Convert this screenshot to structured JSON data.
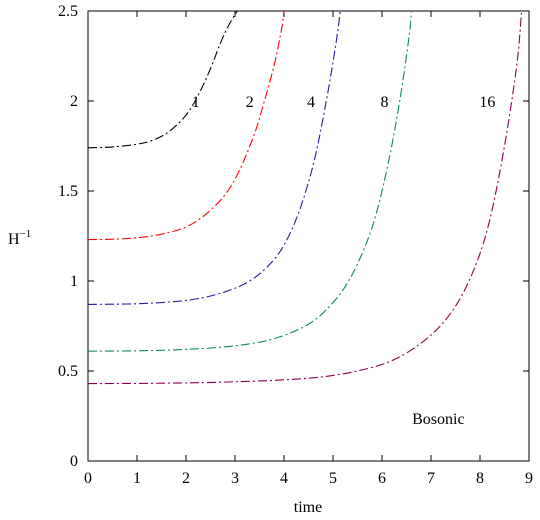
{
  "chart_data": {
    "type": "line",
    "xlabel": "time",
    "ylabel": "H",
    "ylabel_superscript": "−1",
    "xlim": [
      0,
      9
    ],
    "ylim": [
      0,
      2.5
    ],
    "xticks": [
      "0",
      "1",
      "2",
      "3",
      "4",
      "5",
      "6",
      "7",
      "8",
      "9"
    ],
    "yticks": [
      "0",
      "0.5",
      "1",
      "1.5",
      "2",
      "2.5"
    ],
    "grid": false,
    "annotation": "Bosonic",
    "series": [
      {
        "name": "1",
        "color": "#000000",
        "x": [
          0,
          0.5,
          1,
          1.3,
          1.6,
          1.9,
          2.1,
          2.3,
          2.5,
          2.7,
          2.85,
          3.0,
          3.05
        ],
        "y": [
          1.74,
          1.745,
          1.76,
          1.78,
          1.82,
          1.89,
          1.96,
          2.06,
          2.18,
          2.32,
          2.41,
          2.48,
          2.5
        ]
      },
      {
        "name": "2",
        "color": "#ff0000",
        "x": [
          0,
          0.5,
          1,
          1.5,
          2,
          2.4,
          2.8,
          3.1,
          3.4,
          3.6,
          3.8,
          3.95,
          4.0
        ],
        "y": [
          1.23,
          1.232,
          1.24,
          1.26,
          1.3,
          1.37,
          1.48,
          1.62,
          1.82,
          2.0,
          2.2,
          2.4,
          2.5
        ]
      },
      {
        "name": "4",
        "color": "#1f1f9e",
        "x": [
          0,
          0.8,
          1.5,
          2.2,
          2.8,
          3.3,
          3.7,
          4.0,
          4.3,
          4.6,
          4.85,
          5.05,
          5.15
        ],
        "y": [
          0.87,
          0.872,
          0.88,
          0.9,
          0.94,
          1.0,
          1.09,
          1.2,
          1.38,
          1.65,
          1.98,
          2.3,
          2.5
        ]
      },
      {
        "name": "8",
        "color": "#0b8a52",
        "x": [
          0,
          1,
          2,
          3,
          3.8,
          4.5,
          5.0,
          5.4,
          5.8,
          6.1,
          6.35,
          6.55,
          6.6
        ],
        "y": [
          0.61,
          0.612,
          0.62,
          0.64,
          0.68,
          0.76,
          0.88,
          1.04,
          1.3,
          1.62,
          1.98,
          2.35,
          2.5
        ]
      },
      {
        "name": "16",
        "color": "#8b0052",
        "x": [
          0,
          1.5,
          3,
          4.5,
          5.5,
          6.3,
          7.0,
          7.5,
          7.9,
          8.2,
          8.5,
          8.75,
          8.85
        ],
        "y": [
          0.43,
          0.432,
          0.44,
          0.46,
          0.5,
          0.57,
          0.7,
          0.86,
          1.08,
          1.34,
          1.75,
          2.2,
          2.5
        ]
      }
    ],
    "curve_labels": [
      {
        "text": "1",
        "x": 2.2,
        "y": 2.0
      },
      {
        "text": "2",
        "x": 3.3,
        "y": 2.0
      },
      {
        "text": "4",
        "x": 4.55,
        "y": 2.0
      },
      {
        "text": "8",
        "x": 6.05,
        "y": 2.0
      },
      {
        "text": "16",
        "x": 8.15,
        "y": 2.0
      }
    ],
    "annotation_pos": {
      "x": 7.15,
      "y": 0.24
    }
  }
}
